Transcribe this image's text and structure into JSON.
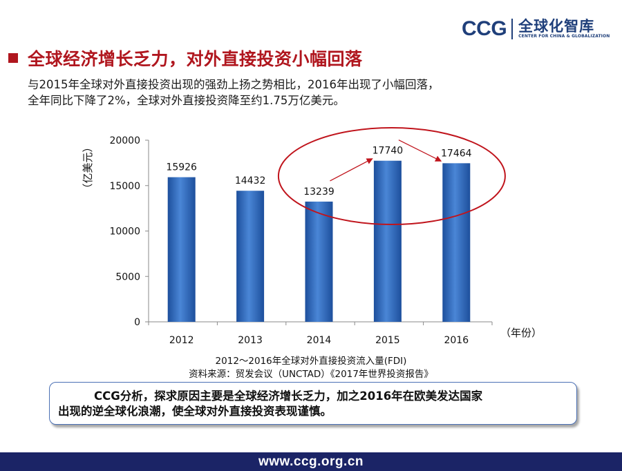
{
  "logo": {
    "brand": "CCG",
    "name_cn": "全球化智库",
    "name_en": "CENTER FOR CHINA & GLOBALIZATION"
  },
  "title": "全球经济增长乏力，对外直接投资小幅回落",
  "intro": {
    "line1": "与2015年全球对外直接投资出现的强劲上扬之势相比，2016年出现了小幅回落，",
    "line2": "全年同比下降了2%，全球对外直接投资降至约1.75万亿美元。"
  },
  "chart_data": {
    "type": "bar",
    "categories": [
      "2012",
      "2013",
      "2014",
      "2015",
      "2016"
    ],
    "values": [
      15926,
      14432,
      13239,
      17740,
      17464
    ],
    "ylabel": "（亿美元）",
    "xlabel": "（年份）",
    "ylim": [
      0,
      20000
    ],
    "yticks": [
      0,
      5000,
      10000,
      15000,
      20000
    ],
    "grid": false,
    "bar_color": "#2f6bbf",
    "annotations": {
      "highlight_ellipse": "2014–2016",
      "arrows": [
        [
          "2014",
          "2015"
        ],
        [
          "2015",
          "2016"
        ]
      ],
      "annotation_color": "#c0141c"
    }
  },
  "caption": {
    "line1": "2012～2016年全球对外直接投资流入量(FDI)",
    "line2": "资料来源：贸发会议（UNCTAD）《2017年世界投资报告》"
  },
  "analysis": {
    "line1": "CCG分析，探求原因主要是全球经济增长乏力，加之2016年在欧美发达国家",
    "line2": "出现的逆全球化浪潮，使全球对外直接投资表现谨慎。"
  },
  "footer": {
    "url": "www.ccg.org.cn"
  }
}
